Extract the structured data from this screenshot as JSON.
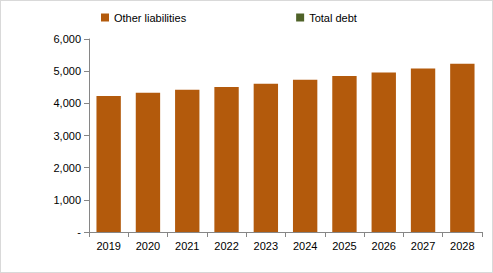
{
  "chart_data": {
    "type": "bar",
    "stacked": true,
    "legend": "top",
    "categories": [
      "2019",
      "2020",
      "2021",
      "2022",
      "2023",
      "2024",
      "2025",
      "2026",
      "2027",
      "2028"
    ],
    "series": [
      {
        "name": "Other liabilities",
        "color": "#b35a0c",
        "values": [
          4230,
          4330,
          4420,
          4510,
          4610,
          4730,
          4850,
          4960,
          5080,
          5230
        ]
      },
      {
        "name": "Total debt",
        "color": "#4f6228",
        "values": [
          0,
          0,
          0,
          0,
          0,
          0,
          0,
          0,
          0,
          0
        ]
      }
    ],
    "ylim": [
      0,
      6000
    ],
    "yticks": [
      {
        "value": 0,
        "label": "-"
      },
      {
        "value": 1000,
        "label": "1,000"
      },
      {
        "value": 2000,
        "label": "2,000"
      },
      {
        "value": 3000,
        "label": "3,000"
      },
      {
        "value": 4000,
        "label": "4,000"
      },
      {
        "value": 5000,
        "label": "5,000"
      },
      {
        "value": 6000,
        "label": "6,000"
      }
    ],
    "grid": false
  }
}
